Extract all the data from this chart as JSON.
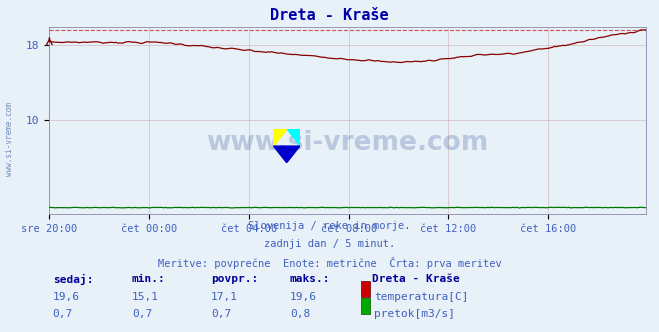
{
  "title": "Dreta - Kraše",
  "title_color": "#0000aa",
  "background_color": "#e8f0f8",
  "plot_bg_color": "#e8f0f8",
  "x_labels": [
    "sre 20:00",
    "čet 00:00",
    "čet 04:00",
    "čet 08:00",
    "čet 12:00",
    "čet 16:00"
  ],
  "x_label_color": "#4060c0",
  "temp_color": "#880000",
  "flow_color": "#007700",
  "temp_dashed_color": "#cc4444",
  "temp_max_val": 19.6,
  "ylim_min": 0,
  "ylim_max": 20,
  "ytick_vals": [
    10,
    18
  ],
  "subtitle1": "Slovenija / reke in morje.",
  "subtitle2": "zadnji dan / 5 minut.",
  "subtitle3": "Meritve: povprečne  Enote: metrične  Črta: prva meritev",
  "subtitle_color": "#4060c0",
  "label_sedaj": "sedaj:",
  "label_min": "min.:",
  "label_povpr": "povpr.:",
  "label_maks": "maks.:",
  "label_station": "Dreta - Kraše",
  "label_temp": "temperatura[C]",
  "label_flow": "pretok[m3/s]",
  "watermark": "www.si-vreme.com",
  "temp_current": "19,6",
  "temp_min": "15,1",
  "temp_avg": "17,1",
  "temp_max": "19,6",
  "flow_current": "0,7",
  "flow_min": "0,7",
  "flow_avg": "0,7",
  "flow_max": "0,8",
  "n_points": 288,
  "grid_color": "#c8a8a8",
  "grid_alpha": 0.7
}
